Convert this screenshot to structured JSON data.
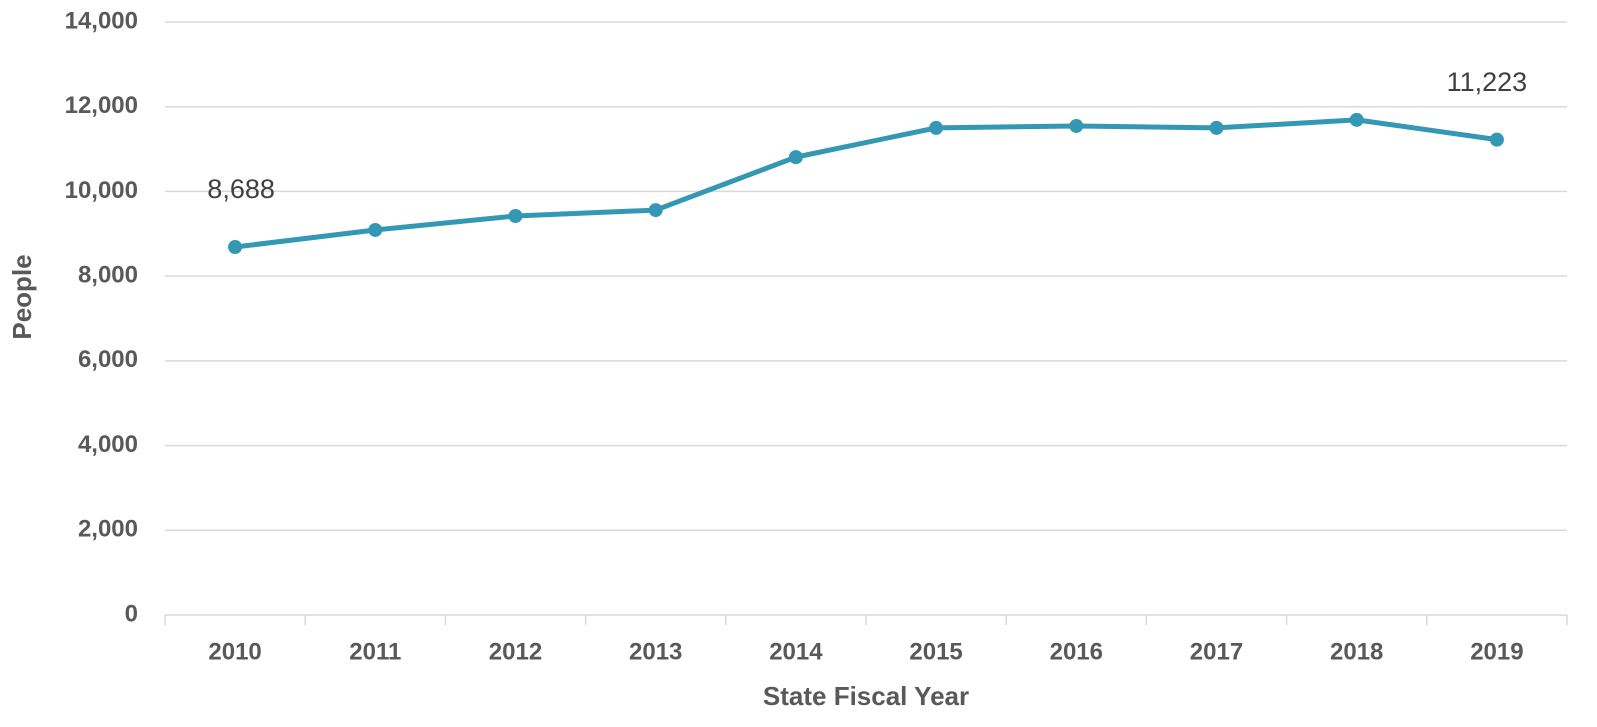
{
  "chart_data": {
    "type": "line",
    "x_label": "State Fiscal Year",
    "y_label": "People",
    "categories": [
      "2010",
      "2011",
      "2012",
      "2013",
      "2014",
      "2015",
      "2016",
      "2017",
      "2018",
      "2019"
    ],
    "series": [
      {
        "name": "People",
        "color": "#3498b5",
        "values": [
          8688,
          9090,
          9420,
          9560,
          10810,
          11500,
          11545,
          11500,
          11690,
          11223
        ],
        "value_labels": [
          "8,688",
          null,
          null,
          null,
          null,
          null,
          null,
          null,
          null,
          "11,223"
        ]
      }
    ],
    "ylim": [
      0,
      14000
    ],
    "yticks": [
      0,
      {
        "value": 2000,
        "label": "2,000"
      },
      {
        "value": 4000,
        "label": "4,000"
      },
      {
        "value": 6000,
        "label": "6,000"
      },
      {
        "value": 8000,
        "label": "8,000"
      },
      {
        "value": 10000,
        "label": "10,000"
      },
      {
        "value": 12000,
        "label": "12,000"
      },
      {
        "value": 14000,
        "label": "14,000"
      }
    ],
    "grid": true
  }
}
